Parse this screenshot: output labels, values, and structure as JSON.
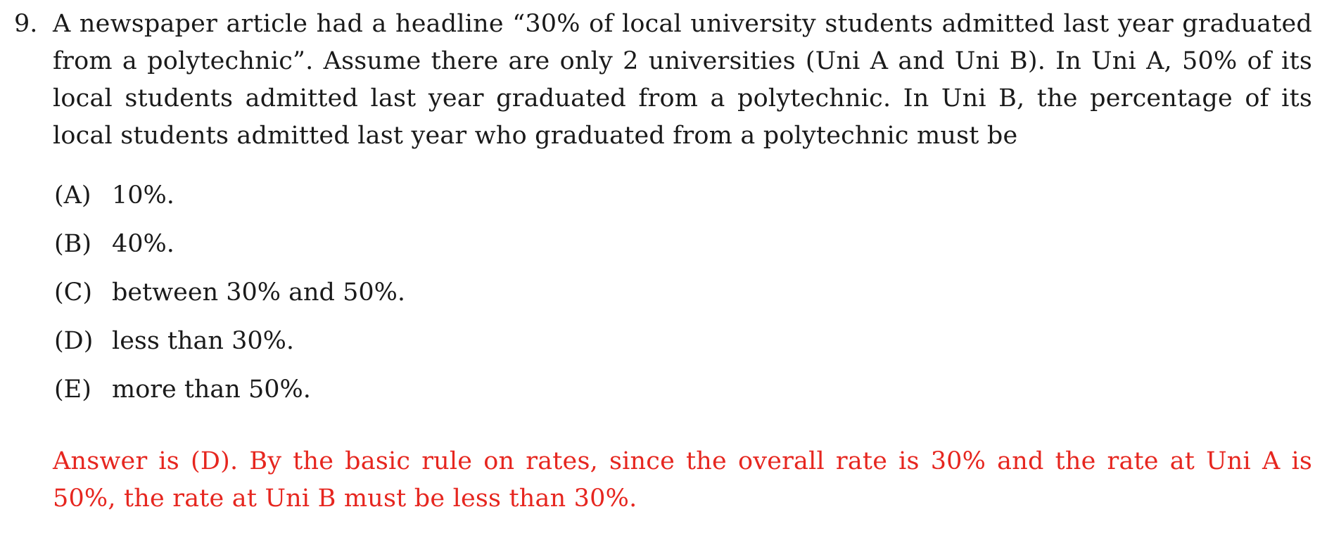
{
  "question": {
    "number": "9.",
    "text": "A newspaper article had a headline “30% of local university students admitted last year graduated from a polytechnic”. Assume there are only 2 universities (Uni A and Uni B). In Uni A, 50% of its local students admitted last year graduated from a polytechnic. In Uni B, the percentage of its local students admitted last year who graduated from a polytechnic must be"
  },
  "options": [
    {
      "label": "(A)",
      "text": "10%."
    },
    {
      "label": "(B)",
      "text": "40%."
    },
    {
      "label": "(C)",
      "text": "between 30% and 50%."
    },
    {
      "label": "(D)",
      "text": "less than 30%."
    },
    {
      "label": "(E)",
      "text": "more than 50%."
    }
  ],
  "answer": {
    "text": "Answer is (D). By the basic rule on rates, since the overall rate is 30% and the rate at Uni A is 50%, the rate at Uni B must be less than 30%.",
    "color": "#e6261f"
  }
}
